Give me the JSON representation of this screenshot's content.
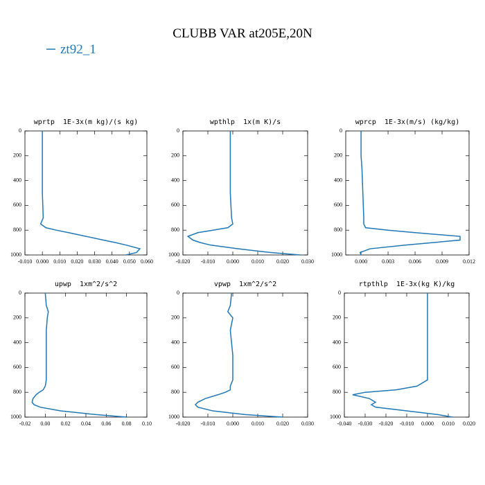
{
  "title": "CLUBB VAR at205E,20N",
  "chart_data": [
    {
      "type": "line",
      "title": "wprtp  1E-3x(m kg)/(s kg)",
      "y": [
        0,
        100,
        150,
        200,
        300,
        500,
        700,
        750,
        780,
        800,
        820,
        850,
        880,
        900,
        920,
        950,
        980,
        1000
      ],
      "series": [
        {
          "name": "zt92_1",
          "color": "#1f77b4",
          "values": [
            0,
            0,
            0,
            0,
            0,
            0,
            0.0005,
            -0.001,
            0.002,
            0.008,
            0.015,
            0.025,
            0.035,
            0.042,
            0.048,
            0.056,
            0.054,
            0.048
          ]
        }
      ],
      "xlim": [
        -0.01,
        0.06
      ],
      "ylim": [
        1000,
        0
      ],
      "xticks": [
        {
          "value": -0.01,
          "label": "-0.010"
        },
        {
          "value": 0,
          "label": "0.000"
        },
        {
          "value": 0.01,
          "label": "0.010"
        },
        {
          "value": 0.02,
          "label": "0.020"
        },
        {
          "value": 0.03,
          "label": "0.030"
        },
        {
          "value": 0.04,
          "label": "0.040"
        },
        {
          "value": 0.05,
          "label": "0.050"
        },
        {
          "value": 0.06,
          "label": "0.060"
        }
      ],
      "yticks": [
        0,
        200,
        400,
        600,
        800,
        1000
      ]
    },
    {
      "type": "line",
      "title": "wpthlp  1x(m K)/s",
      "y": [
        0,
        100,
        150,
        200,
        300,
        500,
        700,
        750,
        780,
        800,
        820,
        850,
        880,
        900,
        920,
        950,
        980,
        1000
      ],
      "series": [
        {
          "name": "zt92_1",
          "color": "#1f77b4",
          "values": [
            -0.001,
            -0.001,
            -0.001,
            -0.001,
            -0.001,
            -0.001,
            -0.0005,
            0,
            -0.002,
            -0.008,
            -0.014,
            -0.018,
            -0.016,
            -0.013,
            -0.009,
            0.002,
            0.015,
            0.027
          ]
        }
      ],
      "xlim": [
        -0.02,
        0.03
      ],
      "ylim": [
        1000,
        0
      ],
      "xticks": [
        {
          "value": -0.02,
          "label": "-0.020"
        },
        {
          "value": -0.01,
          "label": "-0.010"
        },
        {
          "value": 0,
          "label": "0.000"
        },
        {
          "value": 0.01,
          "label": "0.010"
        },
        {
          "value": 0.02,
          "label": "0.020"
        },
        {
          "value": 0.03,
          "label": "0.030"
        }
      ],
      "yticks": [
        0,
        200,
        400,
        600,
        800,
        1000
      ]
    },
    {
      "type": "line",
      "title": "wprcp  1E-3x(m/s) (kg/kg)",
      "y": [
        0,
        100,
        150,
        200,
        300,
        500,
        700,
        750,
        780,
        800,
        820,
        850,
        880,
        900,
        920,
        950,
        980,
        1000
      ],
      "series": [
        {
          "name": "zt92_1",
          "color": "#1f77b4",
          "values": [
            0,
            0,
            0,
            0,
            0.0001,
            0.0002,
            0.0003,
            0.0003,
            0.0005,
            0.003,
            0.006,
            0.011,
            0.011,
            0.008,
            0.005,
            0.001,
            -0.0001,
            0
          ]
        }
      ],
      "xlim": [
        -0.0017,
        0.012
      ],
      "ylim": [
        1000,
        0
      ],
      "xticks": [
        {
          "value": 0,
          "label": "0.000"
        },
        0.003,
        0.006,
        0.009,
        0.012
      ],
      "yticks": [
        0,
        200,
        400,
        600,
        800,
        1000
      ]
    },
    {
      "type": "line",
      "title": "upwp  1xm^2/s^2",
      "y": [
        0,
        100,
        150,
        200,
        300,
        500,
        700,
        750,
        780,
        800,
        820,
        850,
        880,
        900,
        920,
        950,
        980,
        1000
      ],
      "series": [
        {
          "name": "zt92_1",
          "color": "#1f77b4",
          "values": [
            0,
            0.001,
            0.003,
            0.002,
            0.001,
            0.001,
            0.001,
            0,
            -0.002,
            -0.006,
            -0.009,
            -0.012,
            -0.013,
            -0.011,
            -0.005,
            0.015,
            0.05,
            0.08
          ]
        }
      ],
      "xlim": [
        -0.02,
        0.1
      ],
      "ylim": [
        1000,
        0
      ],
      "xticks": [
        -0.02,
        {
          "value": 0,
          "label": "0.00"
        },
        0.02,
        0.04,
        0.06,
        0.08,
        {
          "value": 0.1,
          "label": "0.10"
        }
      ],
      "yticks": [
        0,
        200,
        400,
        600,
        800,
        1000
      ]
    },
    {
      "type": "line",
      "title": "vpwp  1xm^2/s^2",
      "y": [
        0,
        100,
        150,
        200,
        300,
        500,
        700,
        750,
        780,
        800,
        820,
        850,
        880,
        900,
        920,
        950,
        980,
        1000
      ],
      "series": [
        {
          "name": "zt92_1",
          "color": "#1f77b4",
          "values": [
            -0.0005,
            -0.001,
            -0.002,
            0,
            -0.001,
            0,
            0,
            -0.001,
            -0.001,
            -0.003,
            -0.006,
            -0.011,
            -0.014,
            -0.015,
            -0.014,
            -0.008,
            0.005,
            0.02
          ]
        }
      ],
      "xlim": [
        -0.02,
        0.03
      ],
      "ylim": [
        1000,
        0
      ],
      "xticks": [
        {
          "value": -0.02,
          "label": "-0.020"
        },
        {
          "value": -0.01,
          "label": "-0.010"
        },
        {
          "value": 0,
          "label": "0.000"
        },
        {
          "value": 0.01,
          "label": "0.010"
        },
        {
          "value": 0.02,
          "label": "0.020"
        },
        {
          "value": 0.03,
          "label": "0.030"
        }
      ],
      "yticks": [
        0,
        200,
        400,
        600,
        800,
        1000
      ]
    },
    {
      "type": "line",
      "title": "rtpthlp  1E-3x(kg K)/kg",
      "y": [
        0,
        100,
        150,
        200,
        300,
        500,
        700,
        750,
        780,
        800,
        820,
        850,
        880,
        900,
        920,
        950,
        980,
        1000
      ],
      "series": [
        {
          "name": "zt92_1",
          "color": "#1f77b4",
          "values": [
            0,
            0,
            0,
            0,
            0,
            0,
            0,
            -0.005,
            -0.015,
            -0.03,
            -0.036,
            -0.028,
            -0.025,
            -0.027,
            -0.025,
            -0.01,
            0.005,
            0.012
          ]
        }
      ],
      "xlim": [
        -0.04,
        0.02
      ],
      "ylim": [
        1000,
        0
      ],
      "xticks": [
        {
          "value": -0.04,
          "label": "-0.040"
        },
        {
          "value": -0.03,
          "label": "-0.030"
        },
        {
          "value": -0.02,
          "label": "-0.020"
        },
        {
          "value": -0.01,
          "label": "-0.010"
        },
        {
          "value": 0,
          "label": "0.000"
        },
        {
          "value": 0.01,
          "label": "0.010"
        },
        {
          "value": 0.02,
          "label": "0.020"
        }
      ],
      "yticks": [
        0,
        200,
        400,
        600,
        800,
        1000
      ]
    }
  ]
}
